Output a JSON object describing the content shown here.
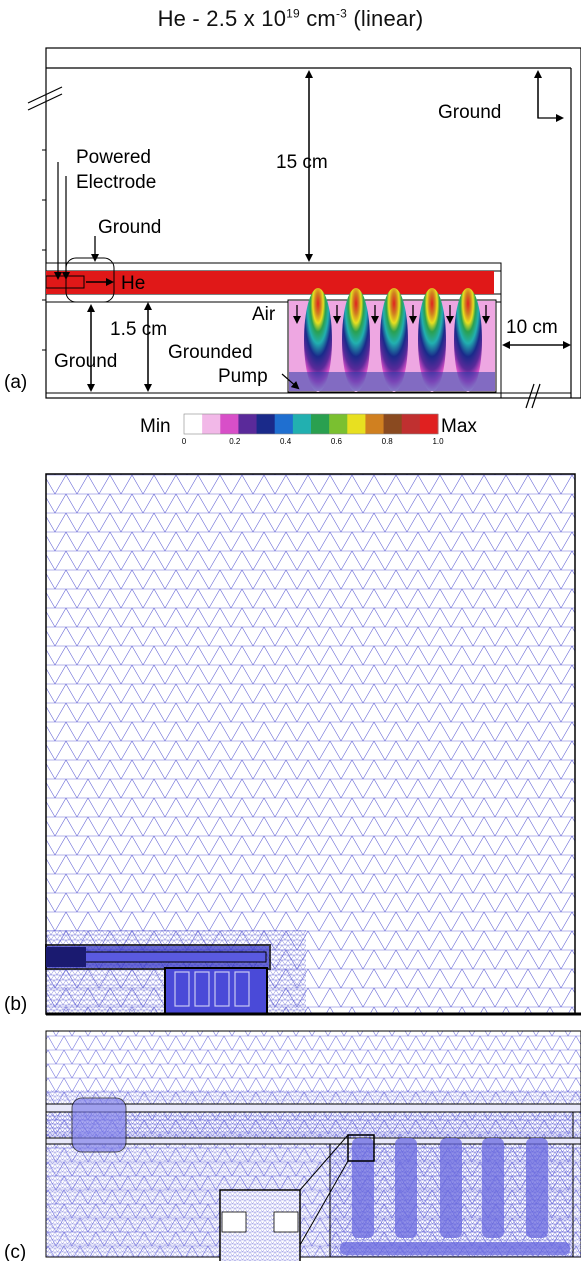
{
  "title": {
    "prefix": "He - 2.5 x 10",
    "exp1": "19",
    "unit": " cm",
    "exp2": "-3",
    "suffix": " (linear)"
  },
  "panel_a": {
    "letter": "(a)",
    "labels": {
      "powered": "Powered",
      "electrode": "Electrode",
      "ground_top": "Ground",
      "ground_right": "Ground",
      "he": "He",
      "air": "Air",
      "dist_15": "15 cm",
      "dist_1_5": "1.5 cm",
      "ground_bottom": "Ground",
      "grounded": "Grounded",
      "pump": "Pump",
      "dist_10": "10 cm"
    },
    "colorbar": {
      "min_label": "Min",
      "max_label": "Max",
      "ticks": [
        "0",
        "0.2",
        "0.4",
        "0.6",
        "0.8",
        "1.0"
      ],
      "colors": [
        "#ffffff",
        "#f2b8e8",
        "#d84fc8",
        "#5a2a9a",
        "#1a2a8a",
        "#1f6fd0",
        "#22b0b0",
        "#2aa050",
        "#7ac030",
        "#e8e020",
        "#d08020",
        "#8a4a20",
        "#c03030",
        "#e02020"
      ]
    }
  },
  "panel_b": {
    "letter": "(b)"
  },
  "panel_c": {
    "letter": "(c)"
  }
}
